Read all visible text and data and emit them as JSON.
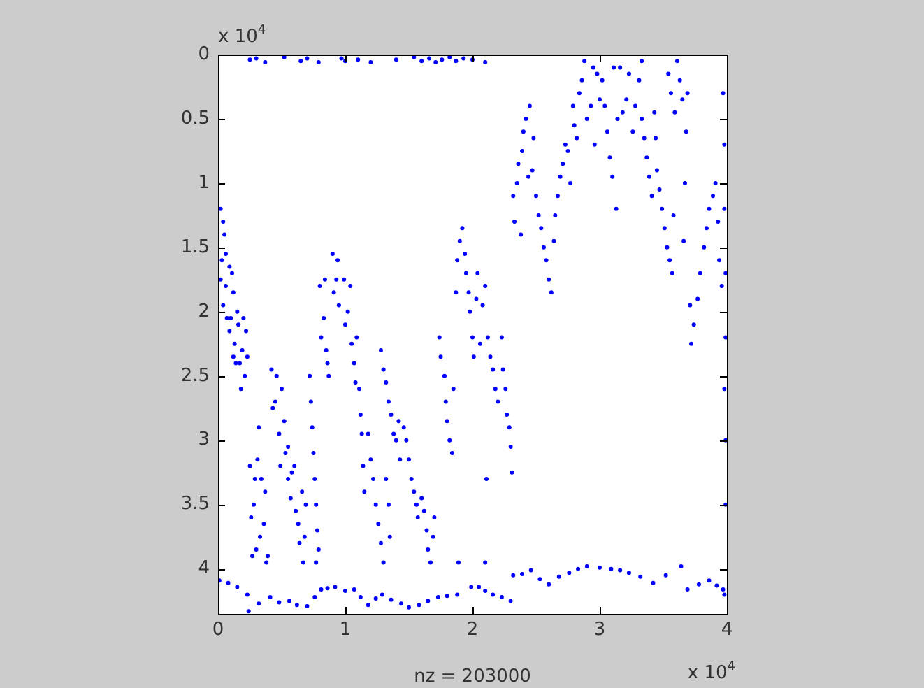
{
  "chart_data": {
    "type": "scatter",
    "xlabel": "nz = 203000",
    "annotations": [
      "x 10$^{4}$",
      "x 10$^{4}$"
    ],
    "xlim": [
      0,
      4
    ],
    "xticks": [
      0,
      1,
      2,
      3,
      4
    ],
    "ylim": [
      4.35,
      0
    ],
    "yticks": [
      0,
      0.5,
      1,
      1.5,
      2,
      2.5,
      3,
      3.5,
      4
    ],
    "marker": "circle",
    "series": [
      {
        "color": "#0000ff",
        "x": [
          0.02,
          0.05,
          0.03,
          0.06,
          0.07,
          0.09,
          0.12,
          0.1,
          0.13,
          0.14,
          0.16,
          0.19,
          0.21,
          0.22,
          0.18,
          0.25,
          0.28,
          0.3,
          0.34,
          0.36,
          0.39,
          0.32,
          0.42,
          0.45,
          0.48,
          0.5,
          0.53,
          0.55,
          0.58,
          0.61,
          0.64,
          0.67,
          0.69,
          0.72,
          0.74,
          0.76,
          0.78,
          0.77,
          0.8,
          0.83,
          0.85,
          0.87,
          0.9,
          0.93,
          0.95,
          0.99,
          1.02,
          1.05,
          1.08,
          1.11,
          1.13,
          1.15,
          1.18,
          1.22,
          1.26,
          1.3,
          1.34,
          1.28,
          1.32,
          1.36,
          1.4,
          1.43,
          1.46,
          1.5,
          1.54,
          1.57,
          1.6,
          1.64,
          1.67,
          1.7,
          1.74,
          1.78,
          1.8,
          1.84,
          1.89,
          1.88,
          1.92,
          1.95,
          1.98,
          2.01,
          2.04,
          2.08,
          2.12,
          2.16,
          2.2,
          2.1,
          2.23,
          2.26,
          2.29,
          2.31,
          2.32,
          2.36,
          2.4,
          2.45,
          2.47,
          2.38,
          2.5,
          2.54,
          2.58,
          2.62,
          2.65,
          2.69,
          2.73,
          2.77,
          2.8,
          2.84,
          2.88,
          2.93,
          2.98,
          2.96,
          3.02,
          3.06,
          3.1,
          3.13,
          3.16,
          3.21,
          3.26,
          3.31,
          3.33,
          3.37,
          3.41,
          3.44,
          3.45,
          3.49,
          3.53,
          3.57,
          3.56,
          3.61,
          3.65,
          3.68,
          3.66,
          3.72,
          3.77,
          3.82,
          3.86,
          3.91,
          3.94,
          3.97,
          3.98,
          3.99,
          3.99,
          3.98
        ],
        "values": [
          1.2,
          1.4,
          1.6,
          1.8,
          2.05,
          1.65,
          1.85,
          2.05,
          2.25,
          2.4,
          2.1,
          2.3,
          2.5,
          2.15,
          2.6,
          3.2,
          3.5,
          3.85,
          3.3,
          3.65,
          3.9,
          2.9,
          2.45,
          2.7,
          2.95,
          2.6,
          3.1,
          3.3,
          3.25,
          3.55,
          3.8,
          3.95,
          3.5,
          2.5,
          2.9,
          3.3,
          3.7,
          3.95,
          1.8,
          2.05,
          2.3,
          2.5,
          1.55,
          1.75,
          1.95,
          1.75,
          2.0,
          2.25,
          2.55,
          2.6,
          2.95,
          3.4,
          2.95,
          3.3,
          3.65,
          3.95,
          3.5,
          2.3,
          2.55,
          2.8,
          3.0,
          3.15,
          2.9,
          3.15,
          3.4,
          3.6,
          3.45,
          3.7,
          3.95,
          3.6,
          2.2,
          2.5,
          2.85,
          3.1,
          3.95,
          1.6,
          1.35,
          1.7,
          2.0,
          2.35,
          1.7,
          1.95,
          2.2,
          2.45,
          2.7,
          3.95,
          2.2,
          2.6,
          2.9,
          3.25,
          1.1,
          0.85,
          0.6,
          0.4,
          0.9,
          1.4,
          1.1,
          1.35,
          1.6,
          1.85,
          1.25,
          0.95,
          0.7,
          1.0,
          0.55,
          0.3,
          0.05,
          0.4,
          0.15,
          0.7,
          0.2,
          0.6,
          0.95,
          1.2,
          0.1,
          0.35,
          0.6,
          0.2,
          0.5,
          0.8,
          1.1,
          0.65,
          0.9,
          1.2,
          1.5,
          1.7,
          0.3,
          0.05,
          0.35,
          0.6,
          1.45,
          2.25,
          1.9,
          1.5,
          1.2,
          1.0,
          1.6,
          0.3,
          1.2,
          2.2,
          3.0,
          4.2
        ]
      },
      {
        "color": "#0000ff",
        "x": [
          0.04,
          0.02,
          0.06,
          0.04,
          0.11,
          0.09,
          0.12,
          0.15,
          0.17,
          0.2,
          0.23,
          0.26,
          0.29,
          0.31,
          0.33,
          0.37,
          0.38,
          0.27,
          0.43,
          0.46,
          0.49,
          0.52,
          0.55,
          0.57,
          0.6,
          0.63,
          0.66,
          0.68,
          0.73,
          0.75,
          0.77,
          0.79,
          0.81,
          0.84,
          0.86,
          0.91,
          0.94,
          1.0,
          1.04,
          1.07,
          1.09,
          1.12,
          1.14,
          1.2,
          1.24,
          1.28,
          1.32,
          1.35,
          1.3,
          1.34,
          1.38,
          1.42,
          1.48,
          1.52,
          1.56,
          1.62,
          1.65,
          1.69,
          1.75,
          1.79,
          1.82,
          1.85,
          1.87,
          1.9,
          1.94,
          1.97,
          2.0,
          2.03,
          2.06,
          2.1,
          2.14,
          2.18,
          2.11,
          2.24,
          2.27,
          2.3,
          2.33,
          2.35,
          2.39,
          2.42,
          2.44,
          2.48,
          2.52,
          2.56,
          2.6,
          2.64,
          2.67,
          2.71,
          2.75,
          2.79,
          2.82,
          2.86,
          2.9,
          2.95,
          3.0,
          3.04,
          3.08,
          3.11,
          3.14,
          3.18,
          3.23,
          3.28,
          3.33,
          3.35,
          3.39,
          3.43,
          3.47,
          3.51,
          3.55,
          3.58,
          3.54,
          3.59,
          3.63,
          3.69,
          3.67,
          3.71,
          3.74,
          3.79,
          3.84,
          3.89,
          3.93,
          3.96,
          3.98,
          3.99,
          3.98,
          3.99
        ],
        "values": [
          1.3,
          1.75,
          1.55,
          1.95,
          1.7,
          2.15,
          2.35,
          2.0,
          2.4,
          2.05,
          2.35,
          3.6,
          3.3,
          3.15,
          3.75,
          3.4,
          3.95,
          3.9,
          2.75,
          2.5,
          3.2,
          2.85,
          3.05,
          3.45,
          3.2,
          3.65,
          3.4,
          3.75,
          2.7,
          3.1,
          3.5,
          3.85,
          2.2,
          1.75,
          2.4,
          1.85,
          1.6,
          2.1,
          1.8,
          2.4,
          2.2,
          2.8,
          3.2,
          3.15,
          3.5,
          3.8,
          3.3,
          3.75,
          2.45,
          2.7,
          2.95,
          2.85,
          3.0,
          3.3,
          3.5,
          3.55,
          3.85,
          3.75,
          2.35,
          2.7,
          3.0,
          2.6,
          1.85,
          1.45,
          1.55,
          1.85,
          2.2,
          1.9,
          2.25,
          1.8,
          2.35,
          2.6,
          3.3,
          2.45,
          2.8,
          3.05,
          1.3,
          1.0,
          0.75,
          0.5,
          0.95,
          0.65,
          1.25,
          1.5,
          1.75,
          1.45,
          1.1,
          0.85,
          0.75,
          0.4,
          0.65,
          0.2,
          0.5,
          0.1,
          0.35,
          0.4,
          0.8,
          0.1,
          0.5,
          0.45,
          0.15,
          0.4,
          0.05,
          0.65,
          0.95,
          0.45,
          1.05,
          1.35,
          1.6,
          1.25,
          0.15,
          0.45,
          0.2,
          0.3,
          1.0,
          1.95,
          2.1,
          1.7,
          1.35,
          1.1,
          1.3,
          1.8,
          0.7,
          1.7,
          2.6,
          3.5
        ]
      },
      {
        "color": "#0000ff",
        "x": [
          0.25,
          0.3,
          0.37,
          0.52,
          0.65,
          0.7,
          0.79,
          0.97,
          1.0,
          1.1,
          1.2,
          1.4,
          1.54,
          1.6,
          1.66,
          1.71,
          1.76,
          1.82,
          1.87,
          1.93,
          2.0,
          2.1
        ],
        "values": [
          0.04,
          0.03,
          0.06,
          0.02,
          0.05,
          0.03,
          0.06,
          0.03,
          0.05,
          0.04,
          0.06,
          0.04,
          0.02,
          0.05,
          0.03,
          0.06,
          0.04,
          0.02,
          0.05,
          0.03,
          0.04,
          0.06
        ]
      },
      {
        "color": "#0000ff",
        "x": [
          0.01,
          0.08,
          0.15,
          0.23,
          0.24,
          0.32,
          0.41,
          0.48,
          0.56,
          0.62,
          0.7,
          0.76,
          0.81,
          0.86,
          0.92,
          1.0,
          1.07,
          1.12,
          1.18,
          1.24,
          1.29,
          1.36,
          1.44,
          1.5,
          1.58,
          1.65,
          1.73,
          1.8,
          1.88,
          1.99,
          2.05,
          2.1,
          2.16,
          2.23,
          2.3,
          2.32,
          2.39,
          2.46,
          2.53,
          2.6,
          2.68,
          2.76,
          2.83,
          2.9,
          3.0,
          3.09,
          3.16,
          3.23,
          3.32,
          3.42,
          3.52,
          3.64,
          3.69,
          3.78,
          3.86,
          3.92,
          3.97
        ],
        "values": [
          4.09,
          4.11,
          4.14,
          4.2,
          4.33,
          4.27,
          4.22,
          4.26,
          4.25,
          4.28,
          4.29,
          4.22,
          4.16,
          4.15,
          4.14,
          4.17,
          4.16,
          4.22,
          4.28,
          4.23,
          4.2,
          4.24,
          4.27,
          4.3,
          4.28,
          4.25,
          4.22,
          4.21,
          4.2,
          4.14,
          4.14,
          4.17,
          4.2,
          4.22,
          4.25,
          4.05,
          4.04,
          4.01,
          4.08,
          4.12,
          4.06,
          4.03,
          4.0,
          3.98,
          3.99,
          4.0,
          4.01,
          4.03,
          4.06,
          4.11,
          4.05,
          3.98,
          4.16,
          4.12,
          4.09,
          4.13,
          4.16
        ]
      }
    ]
  }
}
